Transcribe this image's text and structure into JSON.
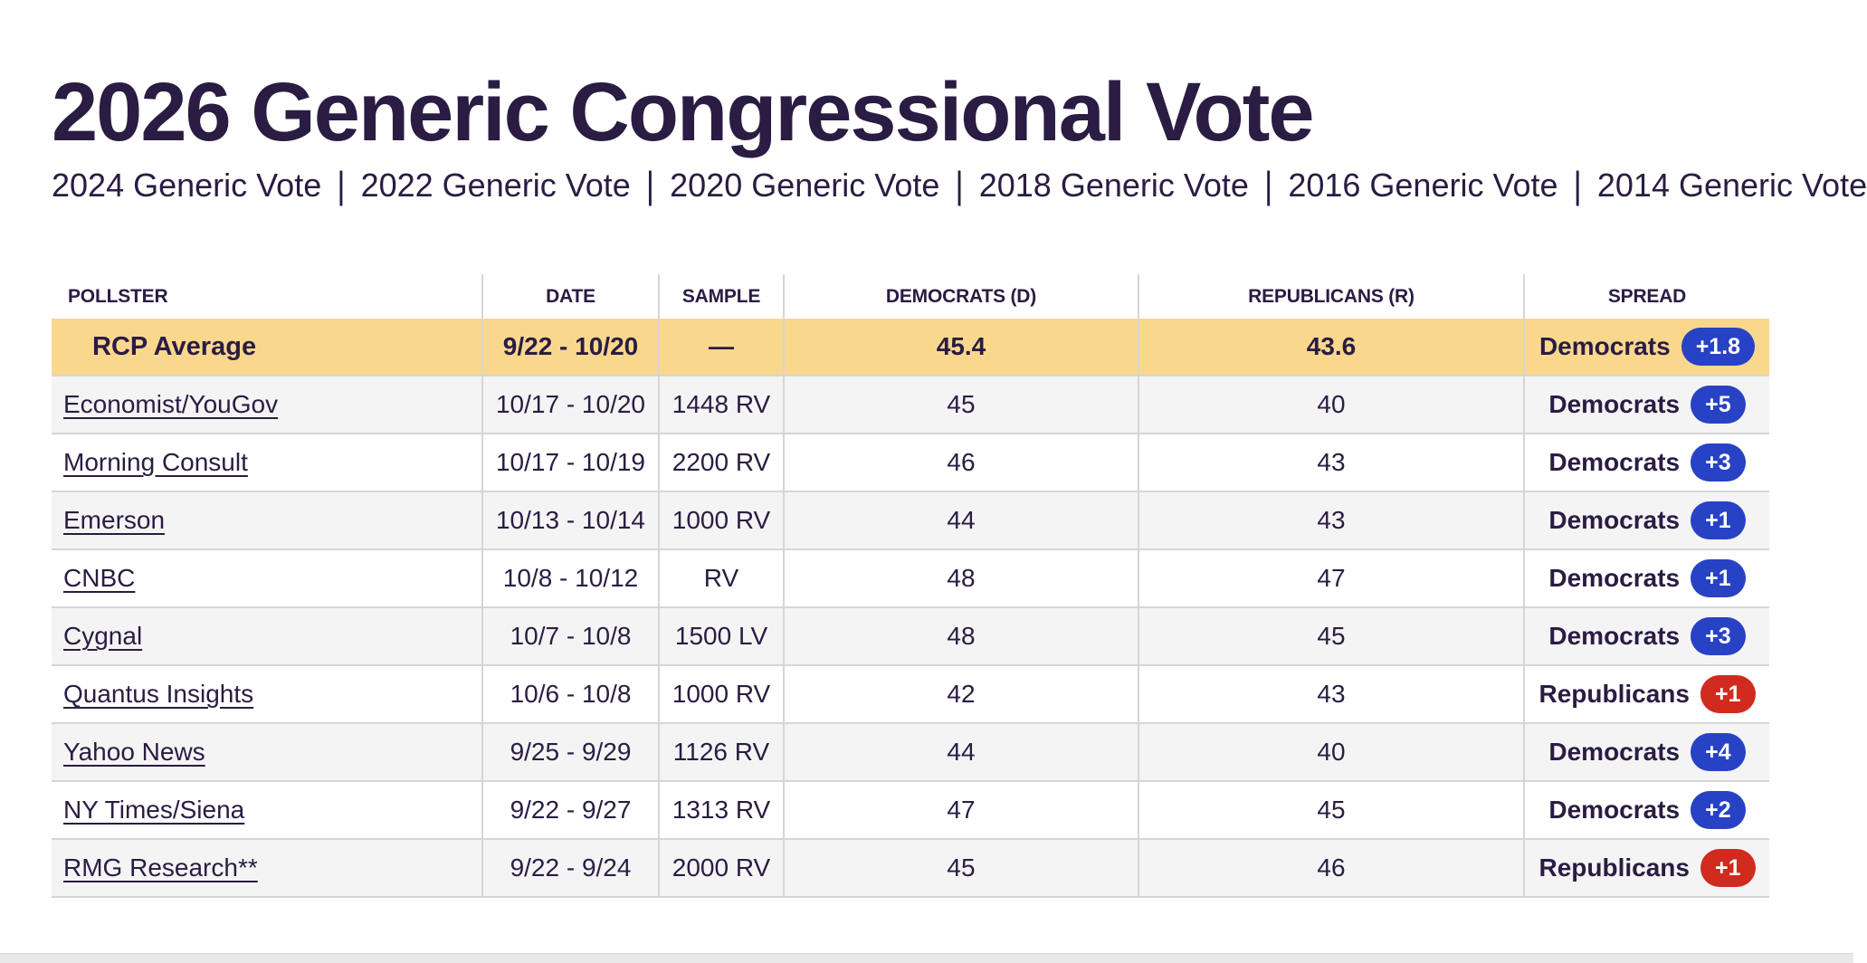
{
  "title": "2026 Generic Congressional Vote",
  "separator": "|",
  "year_links": [
    "2024 Generic Vote",
    "2022 Generic Vote",
    "2020 Generic Vote",
    "2018 Generic Vote",
    "2016 Generic Vote",
    "2014 Generic Vote"
  ],
  "table": {
    "columns": [
      "POLLSTER",
      "DATE",
      "SAMPLE",
      "DEMOCRATS (D)",
      "REPUBLICANS (R)",
      "SPREAD"
    ],
    "average_row": {
      "pollster": "RCP Average",
      "date": "9/22 - 10/20",
      "sample": "—",
      "dem": "45.4",
      "rep": "43.6",
      "spread": {
        "party": "Democrats",
        "margin": "+1.8",
        "color": "blue"
      }
    },
    "rows": [
      {
        "pollster": "Economist/YouGov",
        "date": "10/17 - 10/20",
        "sample": "1448 RV",
        "dem": "45",
        "rep": "40",
        "spread": {
          "party": "Democrats",
          "margin": "+5",
          "color": "blue"
        }
      },
      {
        "pollster": "Morning Consult",
        "date": "10/17 - 10/19",
        "sample": "2200 RV",
        "dem": "46",
        "rep": "43",
        "spread": {
          "party": "Democrats",
          "margin": "+3",
          "color": "blue"
        }
      },
      {
        "pollster": "Emerson",
        "date": "10/13 - 10/14",
        "sample": "1000 RV",
        "dem": "44",
        "rep": "43",
        "spread": {
          "party": "Democrats",
          "margin": "+1",
          "color": "blue"
        }
      },
      {
        "pollster": "CNBC",
        "date": "10/8 - 10/12",
        "sample": "RV",
        "dem": "48",
        "rep": "47",
        "spread": {
          "party": "Democrats",
          "margin": "+1",
          "color": "blue"
        }
      },
      {
        "pollster": "Cygnal",
        "date": "10/7 - 10/8",
        "sample": "1500 LV",
        "dem": "48",
        "rep": "45",
        "spread": {
          "party": "Democrats",
          "margin": "+3",
          "color": "blue"
        }
      },
      {
        "pollster": "Quantus Insights",
        "date": "10/6 - 10/8",
        "sample": "1000 RV",
        "dem": "42",
        "rep": "43",
        "spread": {
          "party": "Republicans",
          "margin": "+1",
          "color": "red"
        }
      },
      {
        "pollster": "Yahoo News",
        "date": "9/25 - 9/29",
        "sample": "1126 RV",
        "dem": "44",
        "rep": "40",
        "spread": {
          "party": "Democrats",
          "margin": "+4",
          "color": "blue"
        }
      },
      {
        "pollster": "NY Times/Siena",
        "date": "9/22 - 9/27",
        "sample": "1313 RV",
        "dem": "47",
        "rep": "45",
        "spread": {
          "party": "Democrats",
          "margin": "+2",
          "color": "blue"
        }
      },
      {
        "pollster": "RMG Research**",
        "date": "9/22 - 9/24",
        "sample": "2000 RV",
        "dem": "45",
        "rep": "46",
        "spread": {
          "party": "Republicans",
          "margin": "+1",
          "color": "red"
        }
      }
    ]
  },
  "colors": {
    "text_dark": "#2a1c42",
    "rcp_highlight_yellow": "#f9d88e",
    "dem_blue": "#2742c5",
    "rep_red": "#d02b1e"
  }
}
